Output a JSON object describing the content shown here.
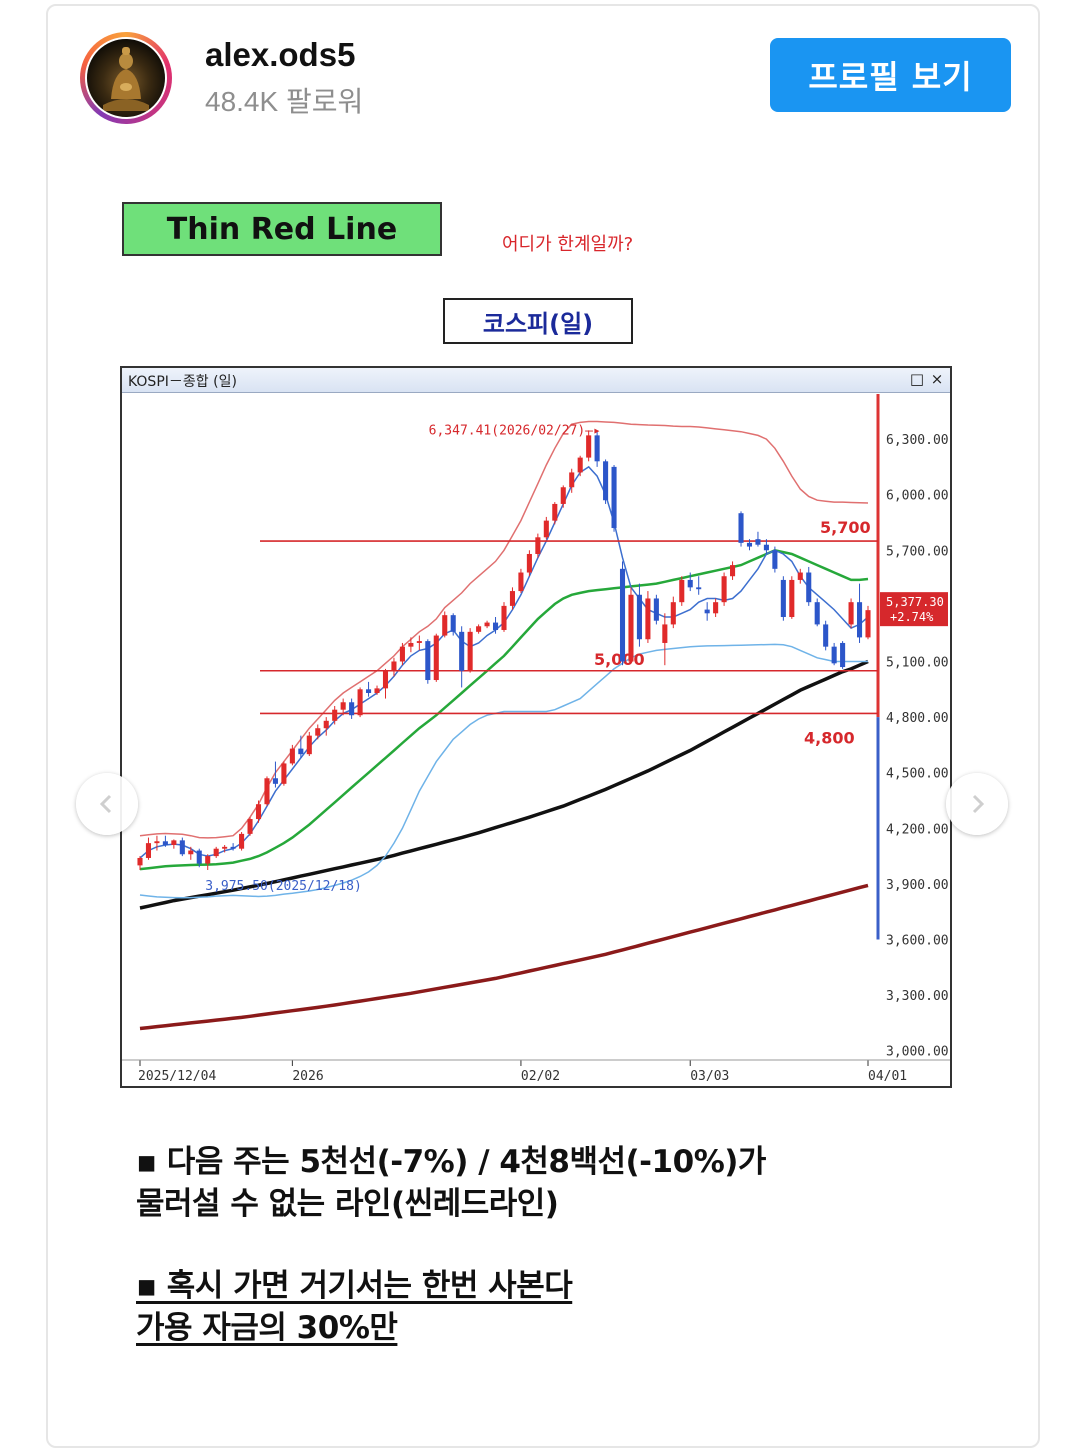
{
  "header": {
    "username": "alex.ods5",
    "followers": "48.4K 팔로워",
    "profile_button": "프로필 보기"
  },
  "post": {
    "title_box": "Thin Red Line",
    "question": "어디가 한계일까?",
    "chart_title": "코스피(일)",
    "window_title": "KOSPI－종합 (일)",
    "window_restore": "□",
    "window_close": "×",
    "bullets": [
      {
        "line1": "▪ 다음 주는 5천선(-7%) / 4천8백선(-10%)가",
        "line2": "물러설 수 없는 라인(씬레드라인)"
      },
      {
        "line1": "▪ 혹시 가면 거기서는 한번 사본다",
        "line2": " 가용 자금의 30%만"
      }
    ]
  },
  "nav": {
    "prev_icon": "chevron-left-icon",
    "next_icon": "chevron-right-icon"
  },
  "chart_data": {
    "type": "candlestick",
    "title": "KOSPI－종합 (일)",
    "y_ticks": [
      "6,300.00",
      "6,000.00",
      "5,700.00",
      "5,100.00",
      "4,800.00",
      "4,500.00",
      "4,200.00",
      "3,900.00",
      "3,600.00",
      "3,300.00",
      "3,000.00"
    ],
    "x_ticks": [
      "2025/12/04",
      "2026",
      "02/02",
      "03/03",
      "04/01"
    ],
    "ylim": [
      2950,
      6500
    ],
    "annotations": {
      "high": "6,347.41(2026/02/27)",
      "low": "3,975.50(2025/12/18)",
      "last_price": "5,377.30",
      "last_change": "+2.74%"
    },
    "levels": [
      {
        "label": "5,700",
        "value": 5750
      },
      {
        "label": "5,000",
        "value": 5050
      },
      {
        "label": "4,800",
        "value": 4820
      }
    ],
    "candles": [
      {
        "o": 4000,
        "h": 4050,
        "l": 3975,
        "c": 4040
      },
      {
        "o": 4040,
        "h": 4150,
        "l": 4030,
        "c": 4120
      },
      {
        "o": 4120,
        "h": 4160,
        "l": 4080,
        "c": 4130
      },
      {
        "o": 4130,
        "h": 4160,
        "l": 4100,
        "c": 4110
      },
      {
        "o": 4110,
        "h": 4140,
        "l": 4090,
        "c": 4135
      },
      {
        "o": 4135,
        "h": 4150,
        "l": 4050,
        "c": 4060
      },
      {
        "o": 4060,
        "h": 4100,
        "l": 4030,
        "c": 4080
      },
      {
        "o": 4080,
        "h": 4090,
        "l": 3990,
        "c": 4010
      },
      {
        "o": 4010,
        "h": 4060,
        "l": 3975,
        "c": 4050
      },
      {
        "o": 4050,
        "h": 4100,
        "l": 4040,
        "c": 4090
      },
      {
        "o": 4090,
        "h": 4110,
        "l": 4070,
        "c": 4100
      },
      {
        "o": 4100,
        "h": 4120,
        "l": 4080,
        "c": 4090
      },
      {
        "o": 4090,
        "h": 4180,
        "l": 4080,
        "c": 4170
      },
      {
        "o": 4170,
        "h": 4260,
        "l": 4160,
        "c": 4250
      },
      {
        "o": 4250,
        "h": 4350,
        "l": 4230,
        "c": 4330
      },
      {
        "o": 4330,
        "h": 4480,
        "l": 4320,
        "c": 4470
      },
      {
        "o": 4470,
        "h": 4560,
        "l": 4420,
        "c": 4440
      },
      {
        "o": 4440,
        "h": 4560,
        "l": 4430,
        "c": 4550
      },
      {
        "o": 4550,
        "h": 4650,
        "l": 4540,
        "c": 4630
      },
      {
        "o": 4630,
        "h": 4700,
        "l": 4580,
        "c": 4600
      },
      {
        "o": 4600,
        "h": 4720,
        "l": 4590,
        "c": 4700
      },
      {
        "o": 4700,
        "h": 4760,
        "l": 4680,
        "c": 4740
      },
      {
        "o": 4740,
        "h": 4800,
        "l": 4700,
        "c": 4780
      },
      {
        "o": 4780,
        "h": 4860,
        "l": 4760,
        "c": 4840
      },
      {
        "o": 4840,
        "h": 4900,
        "l": 4810,
        "c": 4880
      },
      {
        "o": 4880,
        "h": 4900,
        "l": 4790,
        "c": 4810
      },
      {
        "o": 4810,
        "h": 4960,
        "l": 4800,
        "c": 4950
      },
      {
        "o": 4950,
        "h": 4990,
        "l": 4910,
        "c": 4930
      },
      {
        "o": 4930,
        "h": 4970,
        "l": 4920,
        "c": 4955
      },
      {
        "o": 4955,
        "h": 5060,
        "l": 4900,
        "c": 5050
      },
      {
        "o": 5050,
        "h": 5120,
        "l": 5020,
        "c": 5100
      },
      {
        "o": 5100,
        "h": 5200,
        "l": 5080,
        "c": 5180
      },
      {
        "o": 5180,
        "h": 5230,
        "l": 5150,
        "c": 5200
      },
      {
        "o": 5200,
        "h": 5240,
        "l": 5160,
        "c": 5210
      },
      {
        "o": 5210,
        "h": 5220,
        "l": 4980,
        "c": 5000
      },
      {
        "o": 5000,
        "h": 5250,
        "l": 4990,
        "c": 5240
      },
      {
        "o": 5240,
        "h": 5370,
        "l": 5230,
        "c": 5350
      },
      {
        "o": 5350,
        "h": 5360,
        "l": 5240,
        "c": 5260
      },
      {
        "o": 5260,
        "h": 5290,
        "l": 4960,
        "c": 5050
      },
      {
        "o": 5050,
        "h": 5280,
        "l": 5040,
        "c": 5260
      },
      {
        "o": 5260,
        "h": 5300,
        "l": 5250,
        "c": 5290
      },
      {
        "o": 5290,
        "h": 5320,
        "l": 5280,
        "c": 5310
      },
      {
        "o": 5310,
        "h": 5340,
        "l": 5250,
        "c": 5270
      },
      {
        "o": 5270,
        "h": 5420,
        "l": 5260,
        "c": 5400
      },
      {
        "o": 5400,
        "h": 5500,
        "l": 5380,
        "c": 5480
      },
      {
        "o": 5480,
        "h": 5600,
        "l": 5470,
        "c": 5580
      },
      {
        "o": 5580,
        "h": 5700,
        "l": 5560,
        "c": 5680
      },
      {
        "o": 5680,
        "h": 5790,
        "l": 5660,
        "c": 5770
      },
      {
        "o": 5770,
        "h": 5880,
        "l": 5760,
        "c": 5860
      },
      {
        "o": 5860,
        "h": 5960,
        "l": 5840,
        "c": 5950
      },
      {
        "o": 5950,
        "h": 6050,
        "l": 5930,
        "c": 6040
      },
      {
        "o": 6040,
        "h": 6140,
        "l": 6010,
        "c": 6120
      },
      {
        "o": 6120,
        "h": 6210,
        "l": 6100,
        "c": 6200
      },
      {
        "o": 6200,
        "h": 6347,
        "l": 6180,
        "c": 6320
      },
      {
        "o": 6320,
        "h": 6340,
        "l": 6150,
        "c": 6180
      },
      {
        "o": 6180,
        "h": 6190,
        "l": 5950,
        "c": 5970
      },
      {
        "o": 6150,
        "h": 6160,
        "l": 5800,
        "c": 5820
      },
      {
        "o": 5600,
        "h": 5640,
        "l": 5080,
        "c": 5100
      },
      {
        "o": 5100,
        "h": 5500,
        "l": 5090,
        "c": 5460
      },
      {
        "o": 5460,
        "h": 5520,
        "l": 5180,
        "c": 5220
      },
      {
        "o": 5220,
        "h": 5480,
        "l": 5200,
        "c": 5440
      },
      {
        "o": 5440,
        "h": 5460,
        "l": 5300,
        "c": 5320
      },
      {
        "o": 5200,
        "h": 5360,
        "l": 5080,
        "c": 5300
      },
      {
        "o": 5300,
        "h": 5450,
        "l": 5280,
        "c": 5420
      },
      {
        "o": 5420,
        "h": 5560,
        "l": 5400,
        "c": 5540
      },
      {
        "o": 5540,
        "h": 5580,
        "l": 5480,
        "c": 5500
      },
      {
        "o": 5500,
        "h": 5560,
        "l": 5460,
        "c": 5490
      },
      {
        "o": 5380,
        "h": 5420,
        "l": 5320,
        "c": 5360
      },
      {
        "o": 5360,
        "h": 5440,
        "l": 5340,
        "c": 5420
      },
      {
        "o": 5420,
        "h": 5580,
        "l": 5400,
        "c": 5560
      },
      {
        "o": 5560,
        "h": 5640,
        "l": 5540,
        "c": 5620
      },
      {
        "o": 5900,
        "h": 5910,
        "l": 5720,
        "c": 5740
      },
      {
        "o": 5740,
        "h": 5760,
        "l": 5700,
        "c": 5720
      },
      {
        "o": 5760,
        "h": 5800,
        "l": 5720,
        "c": 5730
      },
      {
        "o": 5730,
        "h": 5760,
        "l": 5680,
        "c": 5700
      },
      {
        "o": 5700,
        "h": 5720,
        "l": 5580,
        "c": 5600
      },
      {
        "o": 5540,
        "h": 5560,
        "l": 5320,
        "c": 5340
      },
      {
        "o": 5340,
        "h": 5560,
        "l": 5330,
        "c": 5540
      },
      {
        "o": 5540,
        "h": 5600,
        "l": 5520,
        "c": 5580
      },
      {
        "o": 5580,
        "h": 5610,
        "l": 5400,
        "c": 5420
      },
      {
        "o": 5420,
        "h": 5440,
        "l": 5290,
        "c": 5300
      },
      {
        "o": 5300,
        "h": 5320,
        "l": 5160,
        "c": 5180
      },
      {
        "o": 5180,
        "h": 5200,
        "l": 5080,
        "c": 5090
      },
      {
        "o": 5200,
        "h": 5210,
        "l": 5060,
        "c": 5070
      },
      {
        "o": 5300,
        "h": 5440,
        "l": 5280,
        "c": 5420
      },
      {
        "o": 5420,
        "h": 5520,
        "l": 5200,
        "c": 5230
      },
      {
        "o": 5230,
        "h": 5400,
        "l": 5220,
        "c": 5377
      }
    ],
    "series": [
      {
        "name": "",
        "color": "#e07070",
        "values": [
          4160,
          4165,
          4170,
          4172,
          4170,
          4168,
          4160,
          4150,
          4148,
          4150,
          4155,
          4160,
          4200,
          4260,
          4330,
          4420,
          4500,
          4560,
          4620,
          4680,
          4740,
          4790,
          4840,
          4890,
          4930,
          4960,
          4990,
          5020,
          5050,
          5090,
          5130,
          5180,
          5220,
          5260,
          5290,
          5330,
          5390,
          5430,
          5470,
          5520,
          5560,
          5600,
          5640,
          5700,
          5780,
          5860,
          5960,
          6060,
          6160,
          6250,
          6330,
          6380,
          6390,
          6395,
          6395,
          6392,
          6390,
          6385,
          6380,
          6378,
          6376,
          6375,
          6373,
          6370,
          6368,
          6368,
          6365,
          6360,
          6355,
          6350,
          6345,
          6340,
          6330,
          6320,
          6300,
          6250,
          6180,
          6100,
          6030,
          5990,
          5970,
          5965,
          5960,
          5960,
          5958,
          5956,
          5955
        ]
      },
      {
        "name": "",
        "color": "#26a83a",
        "values": [
          3980,
          3985,
          3990,
          3995,
          3998,
          4000,
          4002,
          4003,
          4004,
          4006,
          4010,
          4015,
          4025,
          4035,
          4050,
          4070,
          4095,
          4120,
          4150,
          4185,
          4220,
          4260,
          4300,
          4340,
          4380,
          4420,
          4460,
          4500,
          4540,
          4580,
          4620,
          4660,
          4700,
          4740,
          4775,
          4810,
          4850,
          4890,
          4930,
          4970,
          5010,
          5050,
          5090,
          5130,
          5180,
          5230,
          5280,
          5330,
          5370,
          5410,
          5440,
          5460,
          5470,
          5480,
          5485,
          5490,
          5495,
          5500,
          5505,
          5510,
          5515,
          5520,
          5530,
          5540,
          5550,
          5560,
          5570,
          5580,
          5590,
          5600,
          5610,
          5620,
          5640,
          5660,
          5680,
          5700,
          5690,
          5680,
          5660,
          5640,
          5620,
          5600,
          5580,
          5560,
          5540,
          5540,
          5545
        ]
      },
      {
        "name": "",
        "color": "#111111",
        "values": [
          3770,
          3780,
          3790,
          3800,
          3810,
          3818,
          3826,
          3834,
          3842,
          3850,
          3858,
          3866,
          3875,
          3884,
          3893,
          3902,
          3912,
          3922,
          3932,
          3942,
          3952,
          3962,
          3972,
          3982,
          3992,
          4002,
          4012,
          4022,
          4032,
          4042,
          4054,
          4066,
          4078,
          4090,
          4102,
          4114,
          4126,
          4138,
          4150,
          4163,
          4176,
          4190,
          4204,
          4218,
          4232,
          4246,
          4260,
          4275,
          4290,
          4305,
          4320,
          4338,
          4356,
          4374,
          4392,
          4410,
          4430,
          4450,
          4470,
          4490,
          4510,
          4532,
          4554,
          4576,
          4598,
          4620,
          4645,
          4670,
          4695,
          4720,
          4745,
          4770,
          4795,
          4820,
          4845,
          4870,
          4895,
          4920,
          4945,
          4965,
          4985,
          5005,
          5025,
          5045,
          5060,
          5080,
          5100
        ]
      },
      {
        "name": "",
        "color": "#8b1a1a",
        "values": [
          3120,
          3125,
          3130,
          3135,
          3140,
          3145,
          3150,
          3155,
          3160,
          3165,
          3170,
          3175,
          3180,
          3186,
          3192,
          3198,
          3204,
          3210,
          3216,
          3222,
          3228,
          3234,
          3240,
          3247,
          3254,
          3261,
          3268,
          3275,
          3282,
          3289,
          3296,
          3303,
          3310,
          3318,
          3326,
          3334,
          3342,
          3350,
          3358,
          3366,
          3374,
          3382,
          3390,
          3400,
          3410,
          3420,
          3430,
          3440,
          3450,
          3460,
          3470,
          3480,
          3490,
          3500,
          3510,
          3520,
          3532,
          3544,
          3556,
          3568,
          3580,
          3592,
          3604,
          3616,
          3628,
          3640,
          3652,
          3664,
          3676,
          3688,
          3700,
          3712,
          3724,
          3736,
          3748,
          3760,
          3772,
          3784,
          3796,
          3808,
          3820,
          3832,
          3844,
          3856,
          3868,
          3880,
          3892
        ]
      },
      {
        "name": "",
        "color": "#6fb3e8",
        "values": [
          3840,
          3835,
          3830,
          3828,
          3826,
          3825,
          3826,
          3828,
          3830,
          3834,
          3836,
          3838,
          3836,
          3834,
          3832,
          3834,
          3838,
          3845,
          3850,
          3856,
          3862,
          3870,
          3880,
          3892,
          3905,
          3920,
          3940,
          3965,
          4000,
          4050,
          4120,
          4200,
          4300,
          4400,
          4480,
          4560,
          4620,
          4680,
          4720,
          4760,
          4790,
          4810,
          4820,
          4830,
          4830,
          4830,
          4830,
          4830,
          4830,
          4840,
          4860,
          4880,
          4900,
          4940,
          4980,
          5020,
          5060,
          5090,
          5120,
          5140,
          5150,
          5160,
          5165,
          5170,
          5175,
          5180,
          5182,
          5184,
          5185,
          5186,
          5187,
          5188,
          5189,
          5190,
          5191,
          5192,
          5190,
          5180,
          5160,
          5140,
          5120,
          5110,
          5100,
          5100,
          5100,
          5100,
          5100
        ]
      },
      {
        "name": "",
        "color": "#3d6fcf",
        "values": [
          4040,
          4080,
          4100,
          4110,
          4115,
          4110,
          4090,
          4060,
          4050,
          4060,
          4080,
          4090,
          4120,
          4170,
          4240,
          4320,
          4400,
          4460,
          4520,
          4580,
          4640,
          4690,
          4730,
          4780,
          4820,
          4840,
          4870,
          4900,
          4930,
          4970,
          5020,
          5080,
          5130,
          5160,
          5170,
          5200,
          5250,
          5270,
          5210,
          5180,
          5200,
          5240,
          5270,
          5310,
          5380,
          5460,
          5560,
          5660,
          5750,
          5850,
          5950,
          6050,
          6120,
          6150,
          6100,
          6000,
          5850,
          5660,
          5500,
          5440,
          5380,
          5360,
          5340,
          5340,
          5360,
          5380,
          5420,
          5440,
          5440,
          5430,
          5440,
          5480,
          5540,
          5600,
          5680,
          5700,
          5680,
          5640,
          5560,
          5500,
          5460,
          5420,
          5380,
          5330,
          5280,
          5300,
          5340
        ]
      }
    ]
  }
}
